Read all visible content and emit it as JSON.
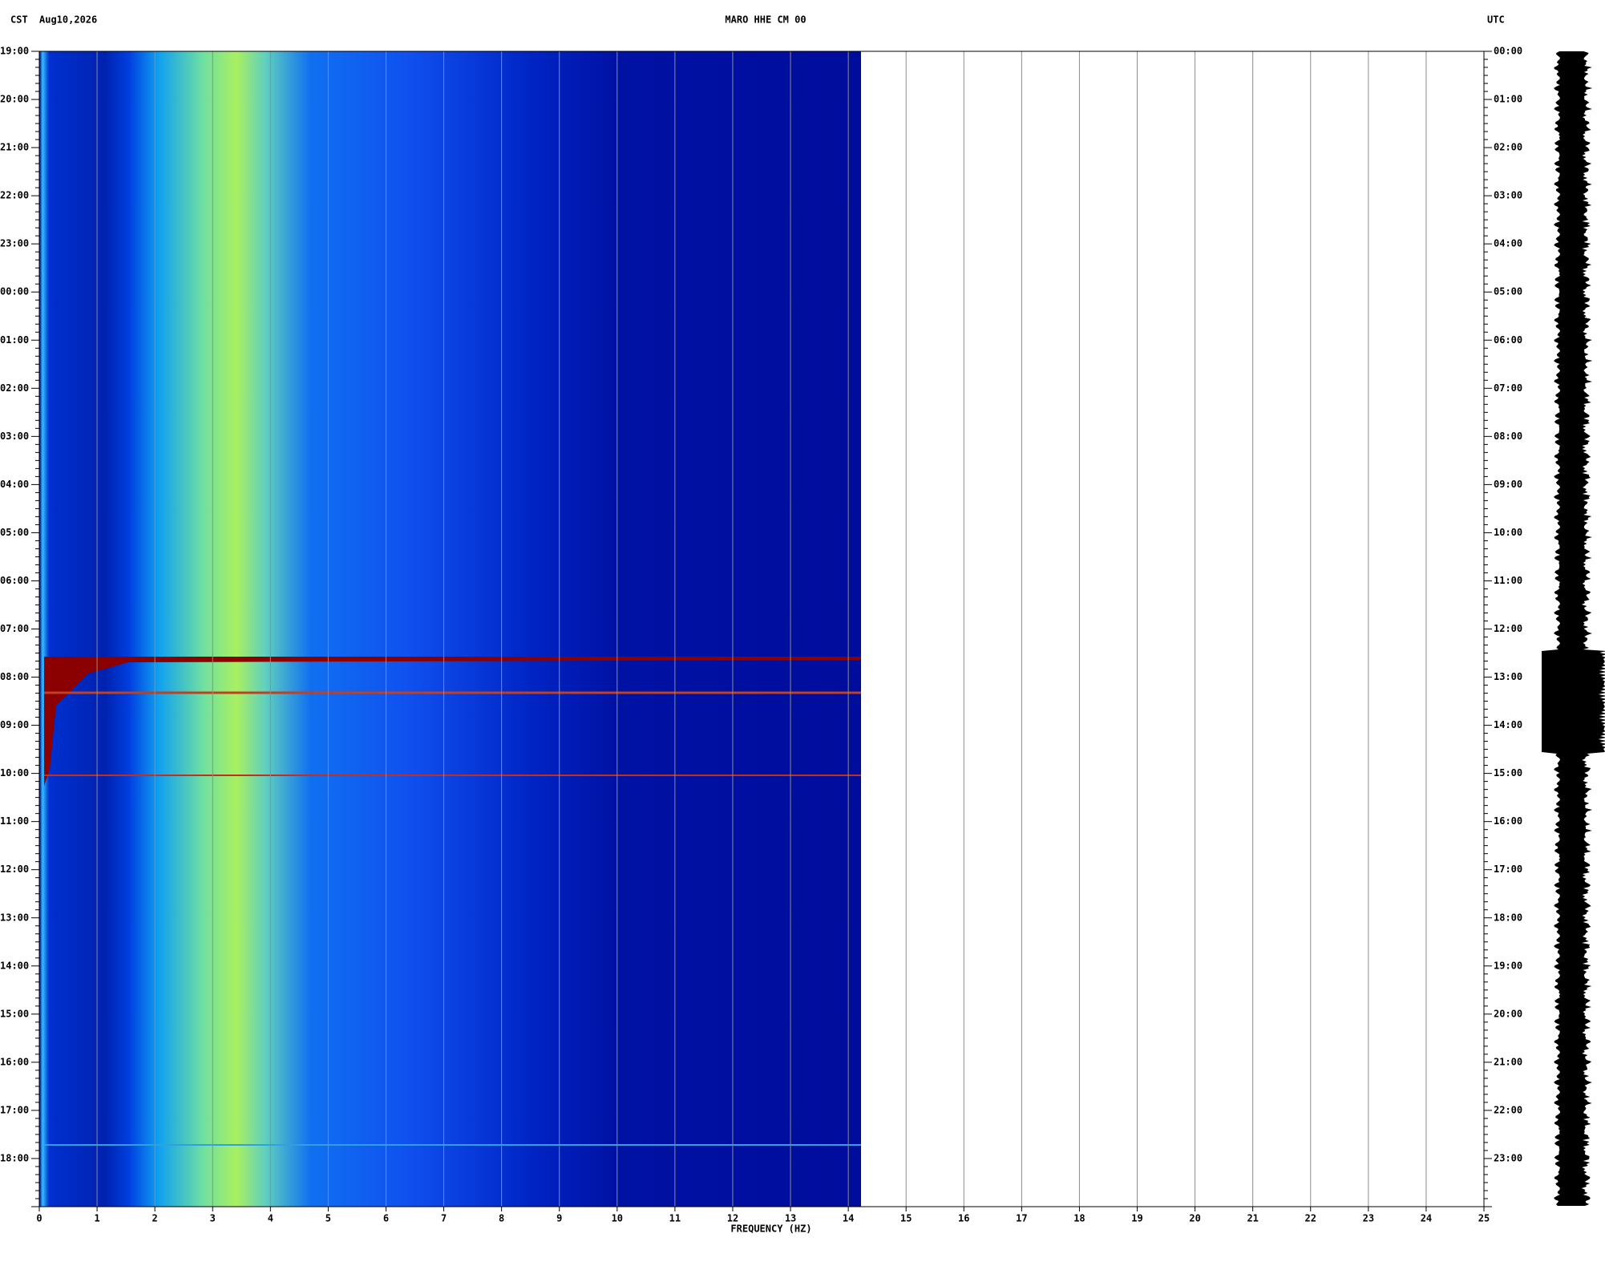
{
  "chart_data": {
    "type": "spectrogram",
    "title": "MARO HHE CM 00",
    "left_timezone": "CST",
    "date": "Aug10,2026",
    "right_timezone": "UTC",
    "x_label": "FREQUENCY (HZ)",
    "xlim": [
      0,
      25
    ],
    "xticks": [
      0,
      1,
      2,
      3,
      4,
      5,
      6,
      7,
      8,
      9,
      10,
      11,
      12,
      13,
      14,
      15,
      16,
      17,
      18,
      19,
      20,
      21,
      22,
      23,
      24,
      25
    ],
    "left_time_labels": [
      "19:00",
      "20:00",
      "21:00",
      "22:00",
      "23:00",
      "00:00",
      "01:00",
      "02:00",
      "03:00",
      "04:00",
      "05:00",
      "06:00",
      "07:00",
      "08:00",
      "09:00",
      "10:00",
      "11:00",
      "12:00",
      "13:00",
      "14:00",
      "15:00",
      "16:00",
      "17:00",
      "18:00"
    ],
    "right_time_labels": [
      "00:00",
      "01:00",
      "02:00",
      "03:00",
      "04:00",
      "05:00",
      "06:00",
      "07:00",
      "08:00",
      "09:00",
      "10:00",
      "11:00",
      "12:00",
      "13:00",
      "14:00",
      "15:00",
      "16:00",
      "17:00",
      "18:00",
      "19:00",
      "20:00",
      "21:00",
      "22:00",
      "23:00"
    ],
    "grid": true
  }
}
